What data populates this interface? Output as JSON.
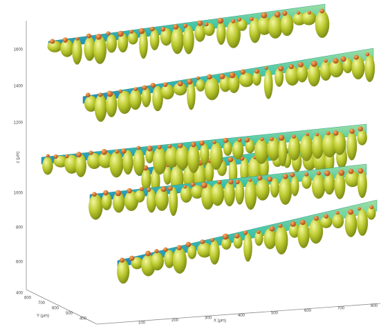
{
  "axes": {
    "z": {
      "label": "z (μm)",
      "ticks": [
        "1600",
        "1400",
        "1200",
        "1000",
        "800",
        "600",
        "400"
      ]
    },
    "x": {
      "label": "X (μm)",
      "ticks": [
        "100",
        "200",
        "300",
        "400",
        "500",
        "600",
        "700",
        "800"
      ]
    },
    "y": {
      "label": "Y (μm)",
      "ticks": [
        "800",
        "700",
        "600",
        "500",
        "400"
      ]
    }
  }
}
